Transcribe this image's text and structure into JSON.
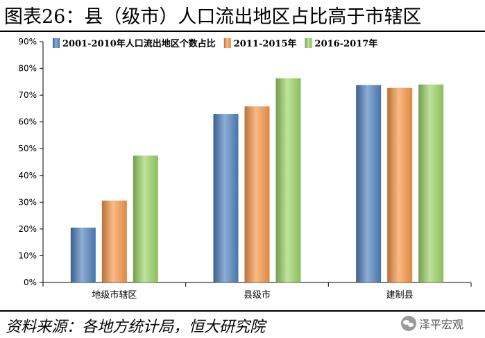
{
  "header": {
    "title": "图表26：县（级市）人口流出地区占比高于市辖区"
  },
  "footer": {
    "source": "资料来源：各地方统计局，恒大研究院",
    "watermark": "泽平宏观",
    "watermark_icon": "wechat-icon"
  },
  "colors": {
    "series": [
      "#4f81bd",
      "#f79646",
      "#9bd266"
    ]
  },
  "chart_data": {
    "type": "bar",
    "title": "",
    "xlabel": "",
    "ylabel": "",
    "categories": [
      "地级市辖区",
      "县级市",
      "建制县"
    ],
    "series": [
      {
        "name": "2001-2010年人口流出地区个数占比",
        "values": [
          20.5,
          63.0,
          73.8
        ]
      },
      {
        "name": "2011-2015年",
        "values": [
          30.6,
          65.8,
          72.7
        ]
      },
      {
        "name": "2016-2017年",
        "values": [
          47.4,
          76.3,
          74.0
        ]
      }
    ],
    "ylim": [
      0,
      90
    ],
    "yticks": [
      0,
      10,
      20,
      30,
      40,
      50,
      60,
      70,
      80,
      90
    ],
    "ytick_labels": [
      "0%",
      "10%",
      "20%",
      "30%",
      "40%",
      "50%",
      "60%",
      "70%",
      "80%",
      "90%"
    ],
    "grid": false,
    "legend_position": "top"
  }
}
